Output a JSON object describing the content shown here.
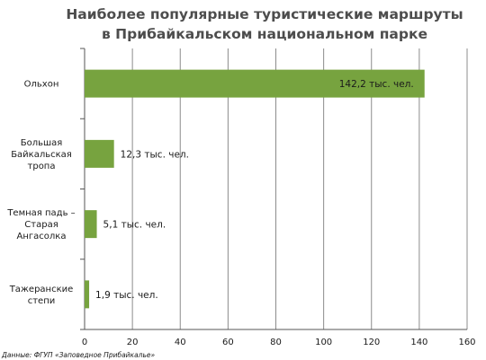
{
  "chart_data": {
    "type": "bar",
    "orientation": "horizontal",
    "title_lines": [
      "Наиболее популярные туристические маршруты",
      "в Прибайкальском национальном парке"
    ],
    "categories": [
      [
        "Ольхон"
      ],
      [
        "Большая",
        "Байкальская",
        "тропа"
      ],
      [
        "Темная падь –",
        "Старая",
        "Ангасолка"
      ],
      [
        "Тажеранские",
        "степи"
      ]
    ],
    "values": [
      142.2,
      12.3,
      5.1,
      1.9
    ],
    "value_labels": [
      "142,2 тыс. чел.",
      "12,3 тыс. чел.",
      "5,1 тыс. чел.",
      "1,9 тыс. чел."
    ],
    "xlim": [
      0,
      160
    ],
    "x_ticks": [
      0,
      20,
      40,
      60,
      80,
      100,
      120,
      140,
      160
    ],
    "grid": true,
    "bar_color": "#77a33f",
    "source": "Данные: ФГУП «Заповедное Прибайкалье»"
  }
}
